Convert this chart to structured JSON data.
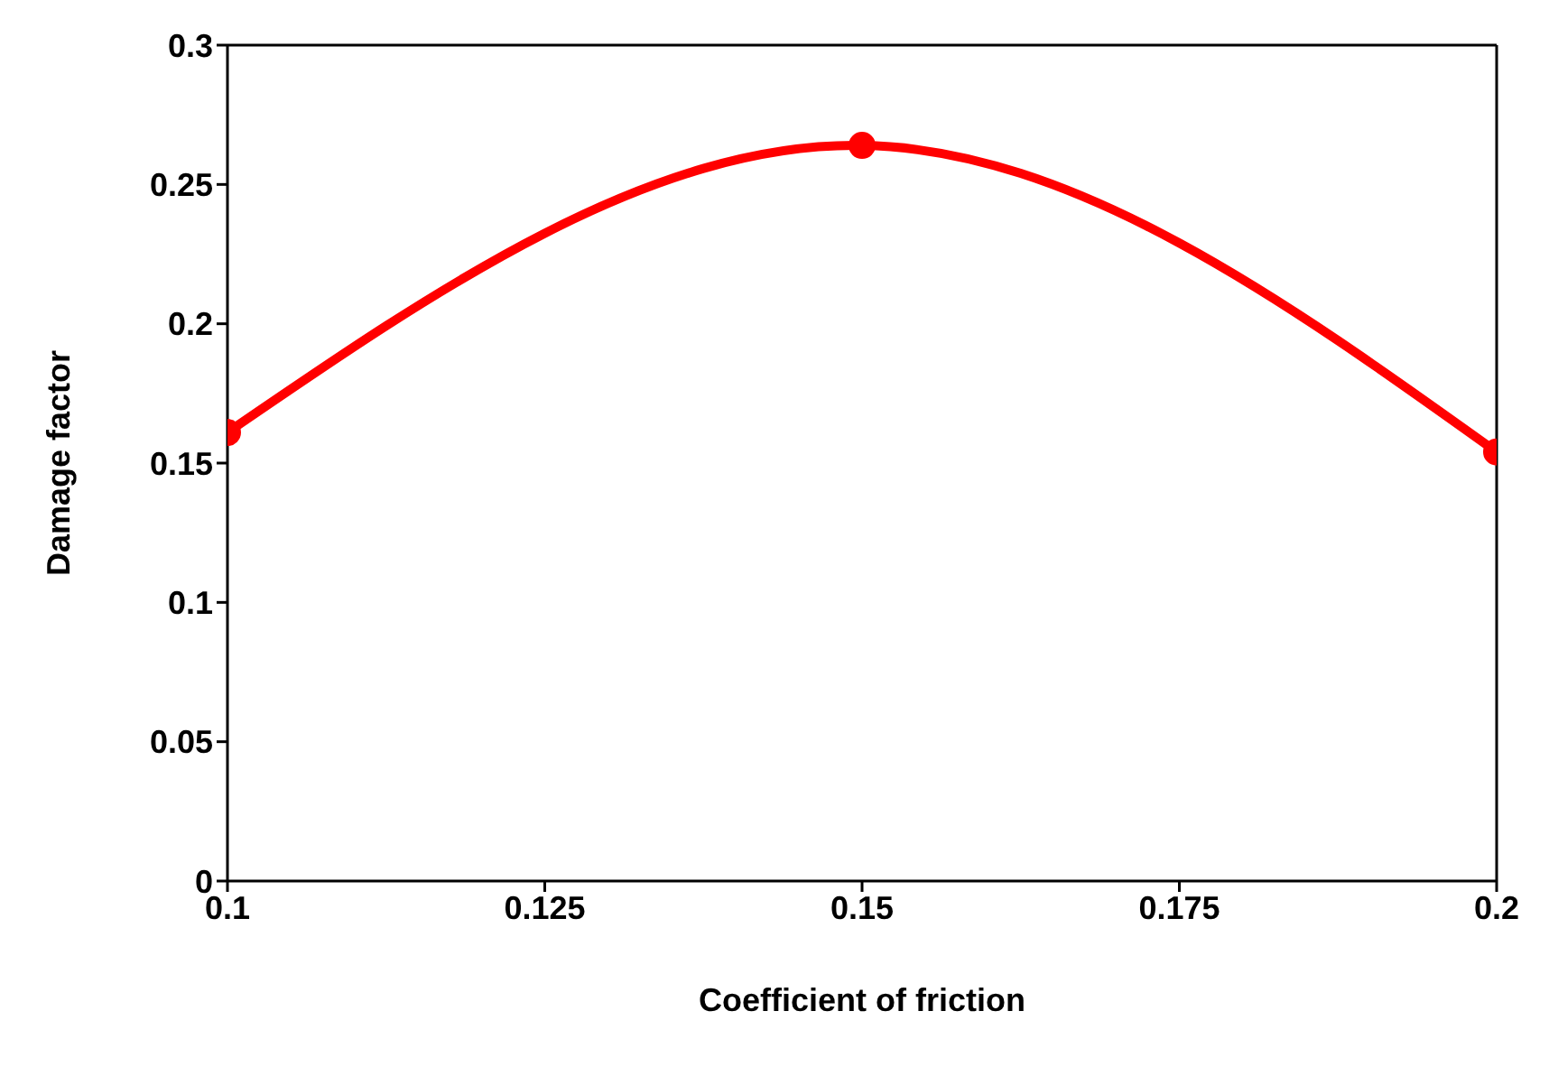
{
  "chart_data": {
    "type": "line",
    "xlabel": "Coefficient of friction",
    "ylabel": "Damage factor",
    "x": [
      0.1,
      0.15,
      0.2
    ],
    "series": [
      {
        "color": "#ff0000",
        "values": [
          0.161,
          0.264,
          0.154
        ]
      }
    ],
    "xlim": [
      0.1,
      0.2
    ],
    "xticks": [
      0.1,
      0.125,
      0.15,
      0.175,
      0.2
    ],
    "ylim": [
      0,
      0.3
    ],
    "yticks": [
      0,
      0.05,
      0.1,
      0.15,
      0.2,
      0.25,
      0.3
    ],
    "grid": false,
    "legend": false,
    "marker": "circle",
    "line_style": "solid"
  }
}
